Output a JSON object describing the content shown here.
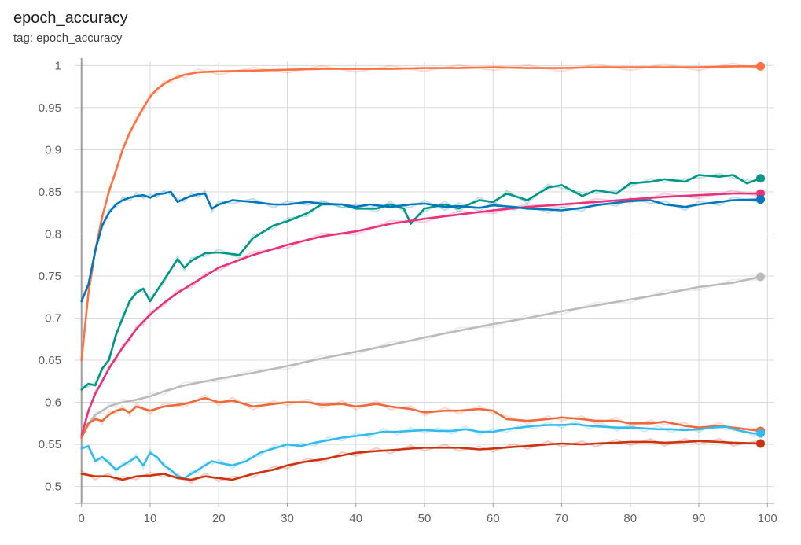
{
  "chart_data": {
    "type": "line",
    "title": "epoch_accuracy",
    "subtitle": "tag: epoch_accuracy",
    "xlabel": "",
    "ylabel": "",
    "xlim": [
      -1,
      101
    ],
    "ylim": [
      0.48,
      1.005
    ],
    "grid": true,
    "x_ticks": [
      "0",
      "10",
      "20",
      "30",
      "40",
      "50",
      "60",
      "70",
      "80",
      "90",
      "100"
    ],
    "y_ticks": [
      "0.5",
      "0.55",
      "0.6",
      "0.65",
      "0.7",
      "0.75",
      "0.8",
      "0.85",
      "0.9",
      "0.95",
      "1"
    ],
    "x_tick_values": [
      0,
      10,
      20,
      30,
      40,
      50,
      60,
      70,
      80,
      90,
      100
    ],
    "y_tick_values": [
      0.5,
      0.55,
      0.6,
      0.65,
      0.7,
      0.75,
      0.8,
      0.85,
      0.9,
      0.95,
      1.0
    ],
    "series": [
      {
        "color": "#ff7043",
        "x": [
          0,
          1,
          2,
          3,
          4,
          5,
          6,
          7,
          8,
          9,
          10,
          11,
          12,
          13,
          14,
          15,
          17,
          20,
          25,
          30,
          35,
          40,
          45,
          50,
          55,
          60,
          65,
          70,
          75,
          80,
          85,
          90,
          95,
          99
        ],
        "values": [
          0.65,
          0.73,
          0.78,
          0.82,
          0.85,
          0.875,
          0.9,
          0.92,
          0.935,
          0.95,
          0.963,
          0.972,
          0.978,
          0.983,
          0.986,
          0.989,
          0.992,
          0.993,
          0.994,
          0.995,
          0.996,
          0.996,
          0.996,
          0.997,
          0.997,
          0.998,
          0.997,
          0.997,
          0.998,
          0.998,
          0.998,
          0.998,
          0.999,
          0.999
        ]
      },
      {
        "color": "#009688",
        "x": [
          0,
          1,
          2,
          3,
          4,
          5,
          6,
          7,
          8,
          9,
          10,
          12,
          14,
          15,
          16,
          18,
          20,
          23,
          25,
          28,
          30,
          33,
          35,
          38,
          40,
          43,
          45,
          47,
          48,
          50,
          53,
          55,
          58,
          60,
          62,
          65,
          68,
          70,
          73,
          75,
          78,
          80,
          83,
          85,
          88,
          90,
          93,
          95,
          97,
          99
        ],
        "values": [
          0.615,
          0.622,
          0.62,
          0.64,
          0.65,
          0.68,
          0.7,
          0.72,
          0.73,
          0.735,
          0.72,
          0.745,
          0.77,
          0.76,
          0.768,
          0.777,
          0.778,
          0.775,
          0.795,
          0.81,
          0.815,
          0.825,
          0.835,
          0.835,
          0.83,
          0.83,
          0.835,
          0.83,
          0.812,
          0.83,
          0.835,
          0.83,
          0.84,
          0.838,
          0.848,
          0.84,
          0.855,
          0.858,
          0.845,
          0.852,
          0.848,
          0.86,
          0.862,
          0.865,
          0.862,
          0.87,
          0.868,
          0.87,
          0.86,
          0.866
        ]
      },
      {
        "color": "#e7327c",
        "x": [
          0,
          1,
          2,
          3,
          4,
          5,
          6,
          7,
          8,
          9,
          10,
          12,
          14,
          16,
          18,
          20,
          25,
          30,
          35,
          40,
          45,
          50,
          55,
          60,
          65,
          70,
          75,
          80,
          85,
          90,
          95,
          99
        ],
        "values": [
          0.56,
          0.59,
          0.61,
          0.625,
          0.64,
          0.653,
          0.665,
          0.676,
          0.687,
          0.696,
          0.704,
          0.718,
          0.73,
          0.74,
          0.75,
          0.76,
          0.775,
          0.787,
          0.797,
          0.803,
          0.812,
          0.818,
          0.823,
          0.828,
          0.832,
          0.835,
          0.838,
          0.841,
          0.844,
          0.846,
          0.848,
          0.848
        ]
      },
      {
        "color": "#0077bb",
        "x": [
          0,
          1,
          2,
          3,
          4,
          5,
          6,
          7,
          8,
          9,
          10,
          11,
          12,
          13,
          14,
          15,
          16,
          17,
          18,
          19,
          20,
          22,
          25,
          28,
          30,
          33,
          35,
          38,
          40,
          42,
          45,
          48,
          50,
          53,
          55,
          58,
          60,
          63,
          65,
          68,
          70,
          73,
          75,
          78,
          80,
          83,
          85,
          88,
          90,
          93,
          95,
          99
        ],
        "values": [
          0.72,
          0.74,
          0.78,
          0.81,
          0.825,
          0.835,
          0.84,
          0.843,
          0.845,
          0.846,
          0.843,
          0.847,
          0.848,
          0.85,
          0.838,
          0.842,
          0.845,
          0.847,
          0.848,
          0.83,
          0.835,
          0.84,
          0.838,
          0.835,
          0.835,
          0.838,
          0.836,
          0.835,
          0.832,
          0.835,
          0.832,
          0.835,
          0.836,
          0.832,
          0.833,
          0.831,
          0.834,
          0.832,
          0.83,
          0.829,
          0.828,
          0.831,
          0.834,
          0.837,
          0.839,
          0.84,
          0.835,
          0.832,
          0.835,
          0.838,
          0.84,
          0.841
        ]
      },
      {
        "color": "#bbbbbb",
        "x": [
          0,
          1,
          2,
          3,
          4,
          5,
          6,
          8,
          10,
          12,
          15,
          20,
          25,
          30,
          35,
          40,
          45,
          50,
          55,
          60,
          65,
          70,
          75,
          80,
          85,
          90,
          95,
          99
        ],
        "values": [
          0.558,
          0.575,
          0.585,
          0.59,
          0.595,
          0.598,
          0.6,
          0.603,
          0.607,
          0.613,
          0.62,
          0.628,
          0.635,
          0.643,
          0.652,
          0.66,
          0.668,
          0.677,
          0.685,
          0.693,
          0.7,
          0.708,
          0.715,
          0.722,
          0.729,
          0.737,
          0.742,
          0.749
        ]
      },
      {
        "color": "#ee6a3c",
        "x": [
          0,
          1,
          2,
          3,
          4,
          5,
          6,
          7,
          8,
          10,
          12,
          15,
          18,
          20,
          22,
          25,
          28,
          30,
          33,
          35,
          38,
          40,
          43,
          45,
          48,
          50,
          53,
          55,
          58,
          60,
          62,
          65,
          68,
          70,
          73,
          75,
          78,
          80,
          83,
          85,
          88,
          90,
          93,
          95,
          99
        ],
        "values": [
          0.558,
          0.575,
          0.58,
          0.578,
          0.585,
          0.59,
          0.592,
          0.588,
          0.595,
          0.59,
          0.595,
          0.598,
          0.605,
          0.6,
          0.602,
          0.595,
          0.598,
          0.6,
          0.6,
          0.597,
          0.598,
          0.595,
          0.598,
          0.595,
          0.592,
          0.588,
          0.59,
          0.59,
          0.592,
          0.59,
          0.58,
          0.578,
          0.58,
          0.582,
          0.58,
          0.578,
          0.578,
          0.575,
          0.575,
          0.577,
          0.572,
          0.57,
          0.572,
          0.57,
          0.566
        ]
      },
      {
        "color": "#33bbee",
        "x": [
          0,
          1,
          2,
          3,
          4,
          5,
          6,
          7,
          8,
          9,
          10,
          11,
          12,
          13,
          14,
          15,
          16,
          17,
          18,
          19,
          20,
          22,
          24,
          26,
          28,
          30,
          32,
          34,
          36,
          38,
          40,
          42,
          44,
          46,
          48,
          50,
          52,
          54,
          56,
          58,
          60,
          62,
          64,
          66,
          68,
          70,
          72,
          74,
          76,
          78,
          80,
          82,
          84,
          86,
          88,
          90,
          92,
          94,
          96,
          98,
          99
        ],
        "values": [
          0.545,
          0.548,
          0.53,
          0.535,
          0.528,
          0.52,
          0.525,
          0.53,
          0.535,
          0.525,
          0.54,
          0.535,
          0.525,
          0.52,
          0.512,
          0.51,
          0.515,
          0.52,
          0.525,
          0.53,
          0.528,
          0.525,
          0.53,
          0.54,
          0.545,
          0.55,
          0.548,
          0.552,
          0.555,
          0.558,
          0.56,
          0.562,
          0.565,
          0.565,
          0.566,
          0.567,
          0.566,
          0.566,
          0.568,
          0.565,
          0.565,
          0.568,
          0.57,
          0.572,
          0.573,
          0.573,
          0.574,
          0.572,
          0.571,
          0.57,
          0.57,
          0.569,
          0.568,
          0.568,
          0.567,
          0.568,
          0.57,
          0.571,
          0.566,
          0.563,
          0.563
        ]
      },
      {
        "color": "#cc3311",
        "x": [
          0,
          2,
          4,
          5,
          6,
          8,
          10,
          12,
          14,
          16,
          18,
          20,
          22,
          25,
          28,
          30,
          33,
          35,
          38,
          40,
          43,
          45,
          48,
          50,
          53,
          55,
          58,
          60,
          63,
          65,
          68,
          70,
          73,
          75,
          78,
          80,
          83,
          85,
          88,
          90,
          93,
          95,
          99
        ],
        "values": [
          0.515,
          0.512,
          0.512,
          0.51,
          0.508,
          0.512,
          0.513,
          0.515,
          0.51,
          0.508,
          0.512,
          0.51,
          0.508,
          0.515,
          0.52,
          0.525,
          0.53,
          0.532,
          0.537,
          0.54,
          0.542,
          0.543,
          0.545,
          0.546,
          0.546,
          0.546,
          0.544,
          0.545,
          0.547,
          0.548,
          0.55,
          0.551,
          0.55,
          0.551,
          0.552,
          0.553,
          0.553,
          0.552,
          0.553,
          0.554,
          0.553,
          0.552,
          0.551
        ]
      }
    ]
  }
}
